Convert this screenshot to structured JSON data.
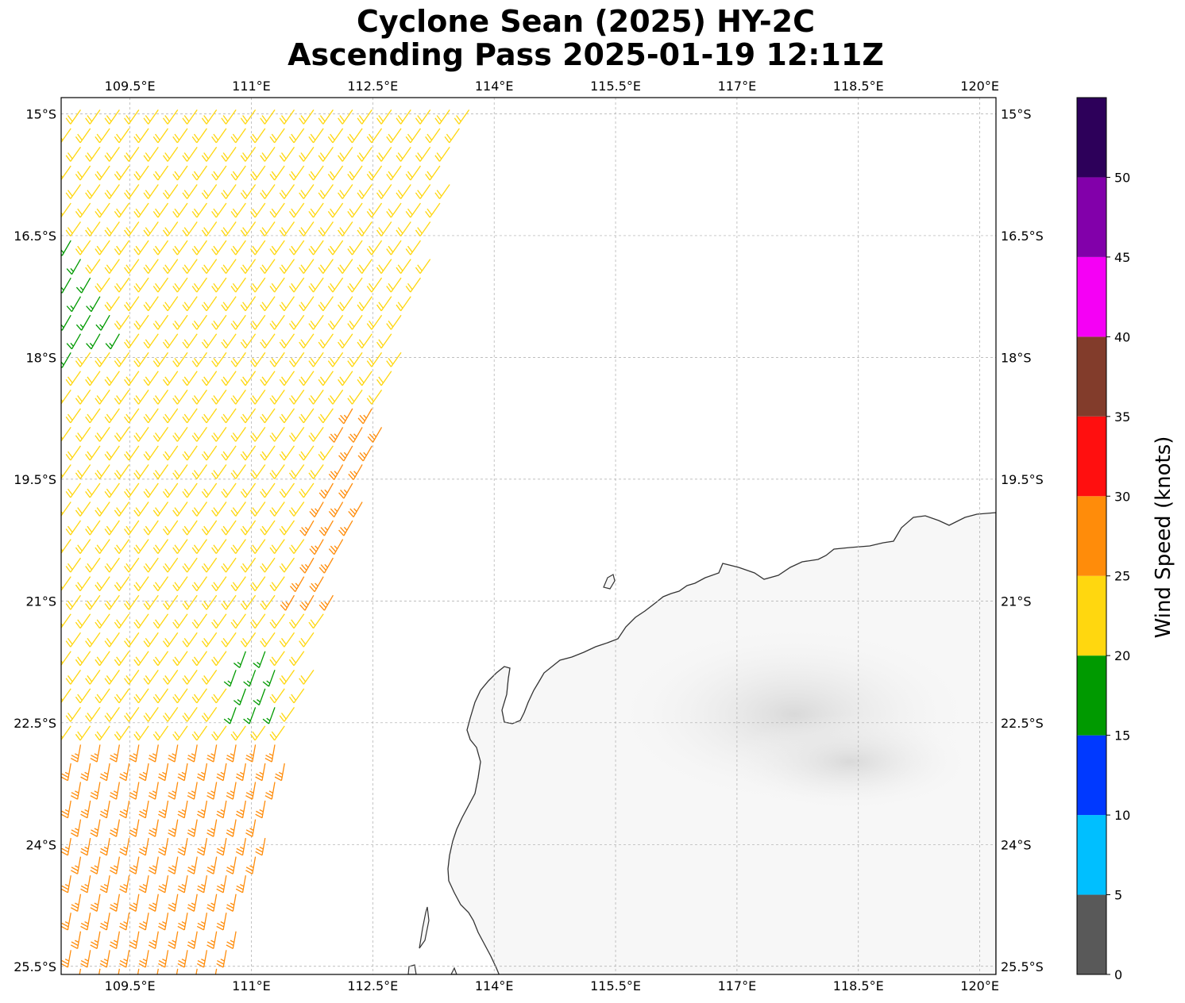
{
  "title": {
    "line1": "Cyclone Sean (2025) HY-2C",
    "line2": "Ascending Pass 2025-01-19 12:11Z"
  },
  "map": {
    "lon_range": [
      108.65,
      120.2
    ],
    "lat_range": [
      -25.6,
      -14.8
    ],
    "lon_ticks": [
      109.5,
      111,
      112.5,
      114,
      115.5,
      117,
      118.5,
      120
    ],
    "lon_tick_labels": [
      "109.5°E",
      "111°E",
      "112.5°E",
      "114°E",
      "115.5°E",
      "117°E",
      "118.5°E",
      "120°E"
    ],
    "lat_ticks": [
      -15,
      -16.5,
      -18,
      -19.5,
      -21,
      -22.5,
      -24,
      -25.5
    ],
    "lat_tick_labels": [
      "15°S",
      "16.5°S",
      "18°S",
      "19.5°S",
      "21°S",
      "22.5°S",
      "24°S",
      "25.5°S"
    ],
    "gridlines": true,
    "land_label": "",
    "swath_label": ""
  },
  "colorbar": {
    "label": "Wind Speed (knots)",
    "bins": [
      {
        "from": 0,
        "to": 5,
        "color": "#595959"
      },
      {
        "from": 5,
        "to": 10,
        "color": "#00bfff"
      },
      {
        "from": 10,
        "to": 15,
        "color": "#0039ff"
      },
      {
        "from": 15,
        "to": 20,
        "color": "#009a00"
      },
      {
        "from": 20,
        "to": 25,
        "color": "#ffd70f"
      },
      {
        "from": 25,
        "to": 30,
        "color": "#ff8c0a"
      },
      {
        "from": 30,
        "to": 35,
        "color": "#ff0f0f"
      },
      {
        "from": 35,
        "to": 40,
        "color": "#823c2b"
      },
      {
        "from": 40,
        "to": 45,
        "color": "#f500f5"
      },
      {
        "from": 45,
        "to": 50,
        "color": "#8200aa"
      },
      {
        "from": 50,
        "to": 55,
        "color": "#2d005a"
      }
    ],
    "ticks": [
      0,
      5,
      10,
      15,
      20,
      25,
      30,
      35,
      40,
      45,
      50
    ],
    "tick_labels": [
      "0",
      "5",
      "10",
      "15",
      "20",
      "25",
      "30",
      "35",
      "40",
      "45",
      "50"
    ]
  },
  "chart_data": {
    "type": "scatter",
    "description_units": "wind barbs; speed in knots, direction in degrees (meteorological from)",
    "swath_corners": [
      [
        108.65,
        -14.9
      ],
      [
        113.8,
        -14.8
      ],
      [
        110.7,
        -25.6
      ],
      [
        108.65,
        -25.6
      ]
    ],
    "wind_field": [
      {
        "region": "north-west",
        "lat_range": [
          -17.9,
          -14.9
        ],
        "speed_kt": 17,
        "direction_deg": 210
      },
      {
        "region": "central",
        "lat_range": [
          -21.0,
          -16.0
        ],
        "speed_kt": 22,
        "direction_deg": 215
      },
      {
        "region": "eastern edge",
        "lat_range": [
          -21.0,
          -18.6
        ],
        "speed_kt": 27,
        "direction_deg": 210
      },
      {
        "region": "near 111E 22S",
        "lat_range": [
          -22.5,
          -21.6
        ],
        "speed_kt": 17,
        "direction_deg": 200
      },
      {
        "region": "south",
        "lat_range": [
          -25.6,
          -22.6
        ],
        "speed_kt": 27,
        "direction_deg": 190
      }
    ]
  }
}
